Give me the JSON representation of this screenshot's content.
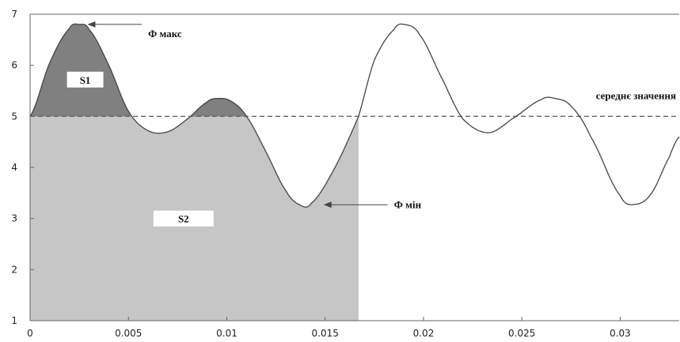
{
  "chart_data": {
    "type": "line",
    "title": "",
    "xlabel": "",
    "ylabel": "",
    "xlim": [
      0,
      0.033
    ],
    "ylim": [
      1,
      7
    ],
    "x_ticks": [
      0,
      0.005,
      0.01,
      0.015,
      0.02,
      0.025,
      0.03
    ],
    "x_tick_labels": [
      "0",
      "0.005",
      "0.01",
      "0.015",
      "0.02",
      "0.025",
      "0.03"
    ],
    "y_ticks": [
      1,
      2,
      3,
      4,
      5,
      6,
      7
    ],
    "y_tick_labels": [
      "1",
      "2",
      "3",
      "4",
      "5",
      "6",
      "7"
    ],
    "grid": false,
    "series": [
      {
        "values": [
          [
            0,
            5.0
          ],
          [
            0.001,
            6.05
          ],
          [
            0.002,
            6.72
          ],
          [
            0.0025,
            6.8
          ],
          [
            0.003,
            6.7
          ],
          [
            0.004,
            6.0
          ],
          [
            0.005,
            5.1
          ],
          [
            0.006,
            4.72
          ],
          [
            0.007,
            4.7
          ],
          [
            0.008,
            4.95
          ],
          [
            0.009,
            5.28
          ],
          [
            0.0095,
            5.35
          ],
          [
            0.0102,
            5.3
          ],
          [
            0.011,
            5.0
          ],
          [
            0.012,
            4.3
          ],
          [
            0.013,
            3.55
          ],
          [
            0.0137,
            3.27
          ],
          [
            0.0143,
            3.3
          ],
          [
            0.0155,
            4.0
          ],
          [
            0.0167,
            5.0
          ],
          [
            0.0175,
            6.1
          ],
          [
            0.0185,
            6.7
          ],
          [
            0.019,
            6.8
          ],
          [
            0.0198,
            6.6
          ],
          [
            0.021,
            5.7
          ],
          [
            0.022,
            4.95
          ],
          [
            0.0233,
            4.68
          ],
          [
            0.0245,
            4.95
          ],
          [
            0.026,
            5.33
          ],
          [
            0.0267,
            5.35
          ],
          [
            0.0275,
            5.2
          ],
          [
            0.0285,
            4.6
          ],
          [
            0.03,
            3.45
          ],
          [
            0.0308,
            3.28
          ],
          [
            0.0316,
            3.5
          ],
          [
            0.0325,
            4.2
          ],
          [
            0.033,
            4.6
          ]
        ]
      }
    ],
    "mean_line": {
      "y": 5,
      "label": "середнє значення"
    },
    "areas": [
      {
        "label": "S1",
        "color": "#808080",
        "x_range": [
          0,
          0.0111
        ],
        "description": "above mean"
      },
      {
        "label": "S2",
        "color": "#c6c6c6",
        "x_range": [
          0,
          0.0167
        ],
        "description": "below curve and mean"
      }
    ],
    "annotations": [
      {
        "text": "Ф макс",
        "x": 0.0028,
        "y": 6.8,
        "label_x": 0.006,
        "label_y": 6.55
      },
      {
        "text": "Ф мін",
        "x": 0.0148,
        "y": 3.27,
        "label_x": 0.0185,
        "label_y": 3.2
      }
    ],
    "colors": {
      "curve": "#444444",
      "area_s1": "#808080",
      "area_s2": "#c6c6c6",
      "mean": "#666666"
    }
  }
}
